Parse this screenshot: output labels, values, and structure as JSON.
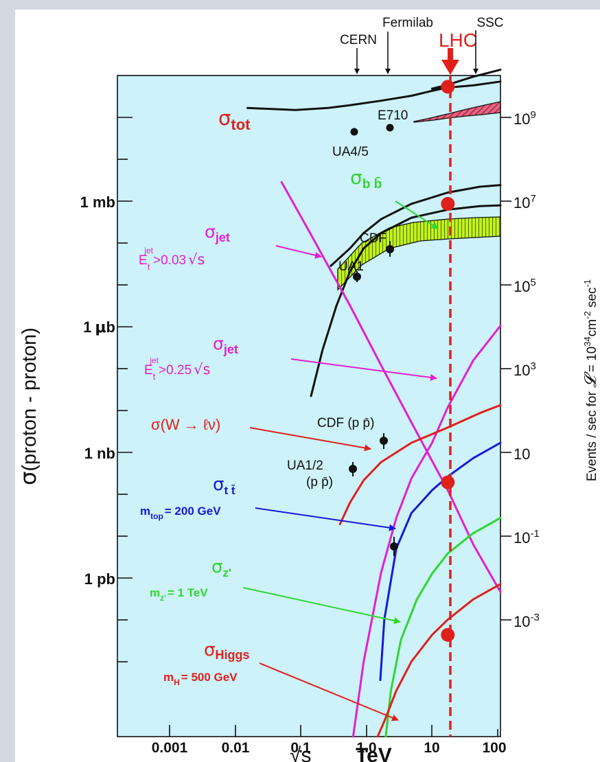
{
  "colors": {
    "background": "#d4d8e0",
    "plot_fill": "#cdf2f9",
    "red": "#e0201b",
    "magenta": "#e21fd2",
    "green": "#30d630",
    "blue": "#1818d8",
    "yellow_green": "#bff21a",
    "hatch_pink": "#ef5e7f"
  },
  "chart_data": {
    "type": "line",
    "x_scale": "log",
    "x_unit": "TeV",
    "xlim": [
      0.00025,
      100
    ],
    "xticks": [
      {
        "v": 0.001,
        "label": "0.001"
      },
      {
        "v": 0.01,
        "label": "0.01"
      },
      {
        "v": 0.1,
        "label": "0.1"
      },
      {
        "v": 1,
        "label": "1.0"
      },
      {
        "v": 10,
        "label": "10"
      },
      {
        "v": 100,
        "label": "100"
      }
    ],
    "xlabel_sqrt": "√s",
    "xlabel_unit": "TeV",
    "y_scale": "log",
    "y_unit": "barn",
    "ylim": [
      1e-14,
      0.1
    ],
    "yticks_left": [
      {
        "v": 0.001,
        "label": "1 mb"
      },
      {
        "v": 1e-06,
        "label": "1 μb"
      },
      {
        "v": 1e-09,
        "label": "1 nb"
      },
      {
        "v": 1e-12,
        "label": "1 pb"
      }
    ],
    "ylabel_left": "σ(proton - proton)",
    "ylabel_right": "Events / sec for 𝓛 = 10³⁴cm⁻²sec⁻¹",
    "yticks_right": [
      {
        "v": 0.1,
        "base": "10",
        "exp": "9"
      },
      {
        "v": 0.001,
        "base": "10",
        "exp": "7"
      },
      {
        "v": 1e-05,
        "base": "10",
        "exp": "5"
      },
      {
        "v": 1e-07,
        "base": "10",
        "exp": "3"
      },
      {
        "v": 1e-09,
        "base": "10",
        "exp": ""
      },
      {
        "v": 1e-11,
        "base": "10",
        "exp": "-1"
      },
      {
        "v": 1e-13,
        "base": "10",
        "exp": "-3"
      }
    ],
    "machines": [
      {
        "name": "CERN",
        "x": 0.63
      },
      {
        "name": "Fermilab",
        "x": 1.8
      },
      {
        "name": "LHC",
        "x": 17
      },
      {
        "name": "SSC",
        "x": 40
      }
    ],
    "series": [
      {
        "name": "σ tot",
        "color": "#111111",
        "points": [
          [
            0.02,
            0.023
          ],
          [
            0.1,
            0.021
          ],
          [
            0.3,
            0.023
          ],
          [
            0.63,
            0.026
          ],
          [
            1.8,
            0.032
          ],
          [
            5,
            0.04
          ],
          [
            10,
            0.05
          ],
          [
            17,
            0.06
          ]
        ]
      },
      {
        "name": "σ tot (band upper)",
        "color": "#111111",
        "points": [
          [
            10,
            0.055
          ],
          [
            17,
            0.066
          ],
          [
            40,
            0.095
          ],
          [
            100,
            0.13
          ]
        ]
      },
      {
        "name": "σ tot (band lower)",
        "color": "#111111",
        "points": [
          [
            10,
            0.05
          ],
          [
            17,
            0.058
          ],
          [
            40,
            0.064
          ],
          [
            100,
            0.076
          ]
        ]
      },
      {
        "name": "σ bb̄ (upper)",
        "color": "#111111",
        "points": [
          [
            0.33,
            1.8e-05
          ],
          [
            0.63,
            4e-05
          ],
          [
            1,
            8e-05
          ],
          [
            1.8,
            0.00015
          ],
          [
            5,
            0.0003
          ],
          [
            17,
            0.0005
          ],
          [
            50,
            0.00065
          ],
          [
            100,
            0.0007
          ]
        ]
      },
      {
        "name": "σ bb̄ (lower)",
        "color": "#111111",
        "points": [
          [
            0.17,
            5e-08
          ],
          [
            0.25,
            4e-07
          ],
          [
            0.4,
            3e-06
          ],
          [
            0.63,
            1.4e-05
          ],
          [
            1,
            4e-05
          ],
          [
            1.8,
            8e-05
          ],
          [
            5,
            0.00016
          ],
          [
            17,
            0.00023
          ],
          [
            50,
            0.00027
          ],
          [
            100,
            0.00028
          ]
        ]
      },
      {
        "name": "σ jet (Et > 0.03√s)",
        "color": "#e21fd2",
        "points": [
          [
            0.063,
            0.0008
          ],
          [
            0.15,
            0.0001
          ],
          [
            0.63,
            3e-06
          ],
          [
            1.8,
            2e-07
          ],
          [
            5,
            1.5e-08
          ],
          [
            17,
            7e-10
          ],
          [
            40,
            6e-11
          ],
          [
            100,
            7e-12
          ]
        ]
      },
      {
        "name": "σ jet (Et > 0.25√s)",
        "color": "#e21fd2",
        "points": [
          [
            0.7,
            1e-14
          ],
          [
            1,
            3e-13
          ],
          [
            1.8,
            1.7e-11
          ],
          [
            3,
            2e-10
          ],
          [
            5,
            1.2e-09
          ],
          [
            10,
            6e-09
          ],
          [
            17,
            3e-08
          ],
          [
            40,
            2.5e-07
          ],
          [
            100,
            1.2e-06
          ]
        ]
      },
      {
        "name": "σ(W→ℓν)",
        "color": "#e0201b",
        "points": [
          [
            0.45,
            1.5e-10
          ],
          [
            0.63,
            4e-10
          ],
          [
            1,
            1.1e-09
          ],
          [
            1.8,
            2.5e-09
          ],
          [
            5,
            6e-09
          ],
          [
            17,
            1.2e-08
          ],
          [
            50,
            2.3e-08
          ],
          [
            100,
            3.3e-08
          ]
        ]
      },
      {
        "name": "σ tt̄",
        "color": "#1818d8",
        "points": [
          [
            1.75,
            1.3e-13
          ],
          [
            2,
            2e-12
          ],
          [
            3,
            5e-11
          ],
          [
            5,
            2.5e-10
          ],
          [
            10,
            7e-10
          ],
          [
            17,
            1.3e-09
          ],
          [
            40,
            3e-09
          ],
          [
            100,
            6e-09
          ]
        ]
      },
      {
        "name": "σ Z'",
        "color": "#30d630",
        "points": [
          [
            2.1,
            1e-14
          ],
          [
            2.5,
            8e-14
          ],
          [
            3.5,
            8e-13
          ],
          [
            6,
            5e-12
          ],
          [
            10,
            1.6e-11
          ],
          [
            17,
            4e-11
          ],
          [
            40,
            1e-10
          ],
          [
            100,
            2e-10
          ]
        ]
      },
      {
        "name": "σ Higgs",
        "color": "#e0201b",
        "points": [
          [
            1.6,
            1e-14
          ],
          [
            2,
            2e-14
          ],
          [
            3,
            8e-14
          ],
          [
            5,
            3e-13
          ],
          [
            10,
            1e-12
          ],
          [
            17,
            2e-12
          ],
          [
            40,
            5e-12
          ],
          [
            100,
            1e-11
          ]
        ]
      }
    ],
    "lhc_points": [
      {
        "x": 17,
        "y": 0.06
      },
      {
        "x": 17,
        "y": 0.0003
      },
      {
        "x": 17,
        "y": 1e-09
      },
      {
        "x": 17,
        "y": 1e-12
      }
    ],
    "data_points": [
      {
        "label": "UA4/5",
        "x": 0.63,
        "y": 0.026
      },
      {
        "label": "E710",
        "x": 1.8,
        "y": 0.032
      },
      {
        "label": "UA1",
        "x": 0.63,
        "y": 2e-05
      },
      {
        "label": "CDF",
        "x": 1.8,
        "y": 8e-05
      },
      {
        "label": "CDF (p p̄)",
        "x": 1.8,
        "y": 2.5e-09
      },
      {
        "label": "UA1/2 (p p̄)",
        "x": 0.63,
        "y": 6e-10
      },
      {
        "label": "",
        "x": 2.1,
        "y": 6e-12
      }
    ],
    "annotations": [
      {
        "main": "σ",
        "sub": "tot"
      },
      {
        "main": "σ",
        "sub": "b b̄"
      },
      {
        "main": "σ",
        "sub": "jet",
        "cond": "Et jet > 0.03 √s"
      },
      {
        "main": "σ",
        "sub": "jet",
        "cond": "Et jet > 0.25 √s"
      },
      {
        "main": "σ(W → ℓν)"
      },
      {
        "main": "σ",
        "sub": "t t̄",
        "cond": "m top = 200 GeV"
      },
      {
        "main": "σ",
        "sub": "Z'",
        "cond": "m Z' = 1 TeV"
      },
      {
        "main": "σ",
        "sub": "Higgs",
        "cond": "m H = 500 GeV"
      }
    ]
  },
  "labels": {
    "machine_cern": "CERN",
    "machine_fermilab": "Fermilab",
    "machine_lhc": "LHC",
    "machine_ssc": "SSC",
    "tick_1mb": "1 mb",
    "tick_1ub_unit": "b",
    "tick_1ub_num": "1",
    "tick_1ub_mu": "μ",
    "tick_1nb": "1 nb",
    "tick_1pb": "1 pb",
    "ylabel_left_sigma": "σ",
    "ylabel_left_text": "(proton - proton)",
    "ylabel_right_a": "Events / sec for ",
    "ylabel_right_L": "𝓛",
    "ylabel_right_b": " = 10",
    "ylabel_right_e34": "34",
    "ylabel_right_cm": "cm",
    "ylabel_right_em2": "-2",
    "ylabel_right_sec": " sec",
    "ylabel_right_em1": "-1",
    "xlabel_sqrt": "√s",
    "xlabel_unit": "TeV",
    "sigma": "σ",
    "sub_tot": "tot",
    "sub_bb": "b b̄",
    "sub_jet": "jet",
    "et_E": "E",
    "et_sub_t": "t",
    "et_sup_jet": "jet",
    "jet1_cond": ">0.03",
    "jet2_cond": ">0.25",
    "sqrt_s": "√s",
    "w_label": "σ(W → ℓν)",
    "sub_tt": "t t̄",
    "mtop_m": "m",
    "mtop_sub": "top",
    "mtop_val": "= 200 GeV",
    "sub_zp": "z'",
    "mz_m": "m",
    "mz_sub": "z'",
    "mz_val": "= 1 TeV",
    "sub_higgs": "Higgs",
    "mh_m": "m",
    "mh_sub": "H",
    "mh_val": "= 500 GeV",
    "pt_ua45": "UA4/5",
    "pt_e710": "E710",
    "pt_ua1": "UA1",
    "pt_cdf": "CDF",
    "pt_cdf_pp": "CDF (p p̄)",
    "pt_ua12": "UA1/2",
    "pt_ua12_pp": "(p p̄)"
  }
}
